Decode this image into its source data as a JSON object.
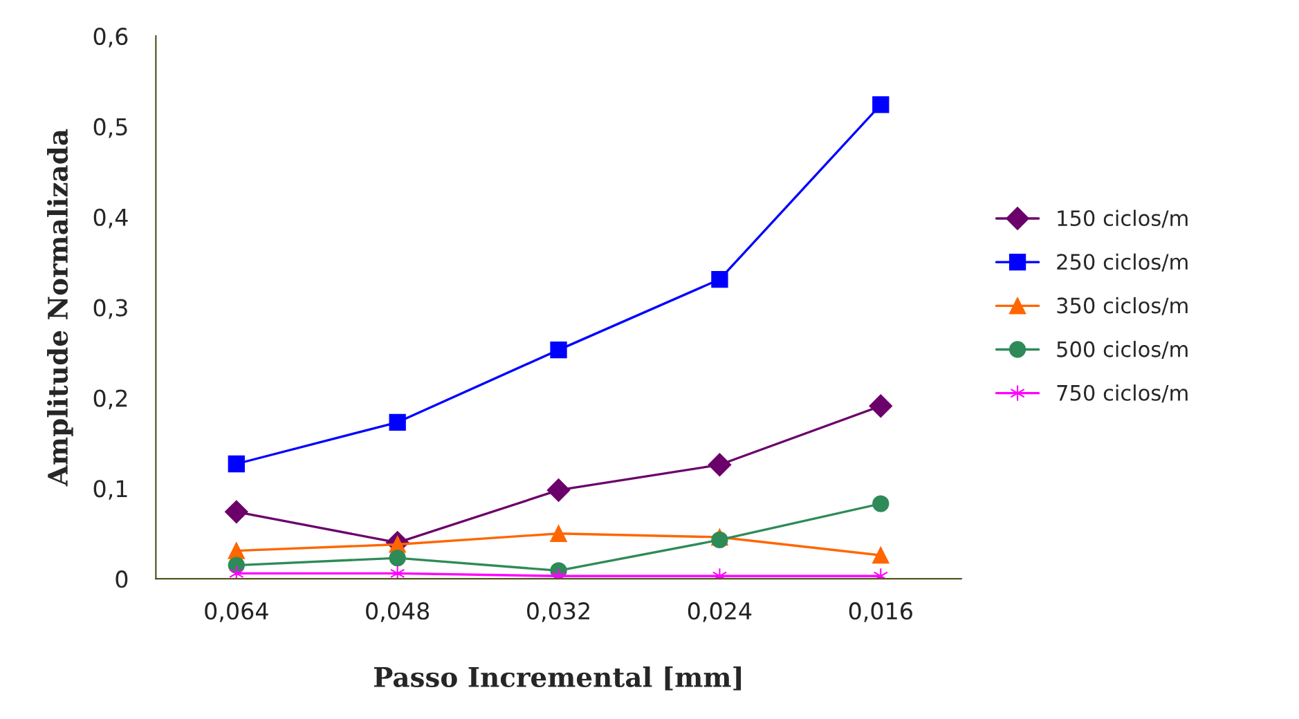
{
  "chart_data": {
    "type": "line",
    "xlabel": "Passo Incremental [mm]",
    "ylabel": "Amplitude Normalizada",
    "categories": [
      "0,064",
      "0,048",
      "0,032",
      "0,024",
      "0,016"
    ],
    "series": [
      {
        "name": "150 ciclos/m",
        "color": "#6b006b",
        "marker": "diamond",
        "values": [
          0.074,
          0.04,
          0.098,
          0.126,
          0.191
        ]
      },
      {
        "name": "250 ciclos/m",
        "color": "#0000ff",
        "marker": "square",
        "values": [
          0.127,
          0.173,
          0.253,
          0.331,
          0.524
        ]
      },
      {
        "name": "350 ciclos/m",
        "color": "#ff6600",
        "marker": "triangle",
        "values": [
          0.031,
          0.038,
          0.05,
          0.046,
          0.026
        ]
      },
      {
        "name": "500 ciclos/m",
        "color": "#2e8b57",
        "marker": "circle",
        "values": [
          0.015,
          0.023,
          0.009,
          0.043,
          0.083
        ]
      },
      {
        "name": "750 ciclos/m",
        "color": "#ff00ff",
        "marker": "cross",
        "values": [
          0.006,
          0.006,
          0.003,
          0.003,
          0.003
        ]
      }
    ],
    "ylim": [
      0,
      0.6
    ],
    "yticks": [
      {
        "value": 0,
        "label": "0"
      },
      {
        "value": 0.1,
        "label": "0,1"
      },
      {
        "value": 0.2,
        "label": "0,2"
      },
      {
        "value": 0.3,
        "label": "0,3"
      },
      {
        "value": 0.4,
        "label": "0,4"
      },
      {
        "value": 0.5,
        "label": "0,5"
      },
      {
        "value": 0.6,
        "label": "0,6"
      }
    ],
    "grid": false,
    "legend": "right",
    "line_style": "solid"
  }
}
